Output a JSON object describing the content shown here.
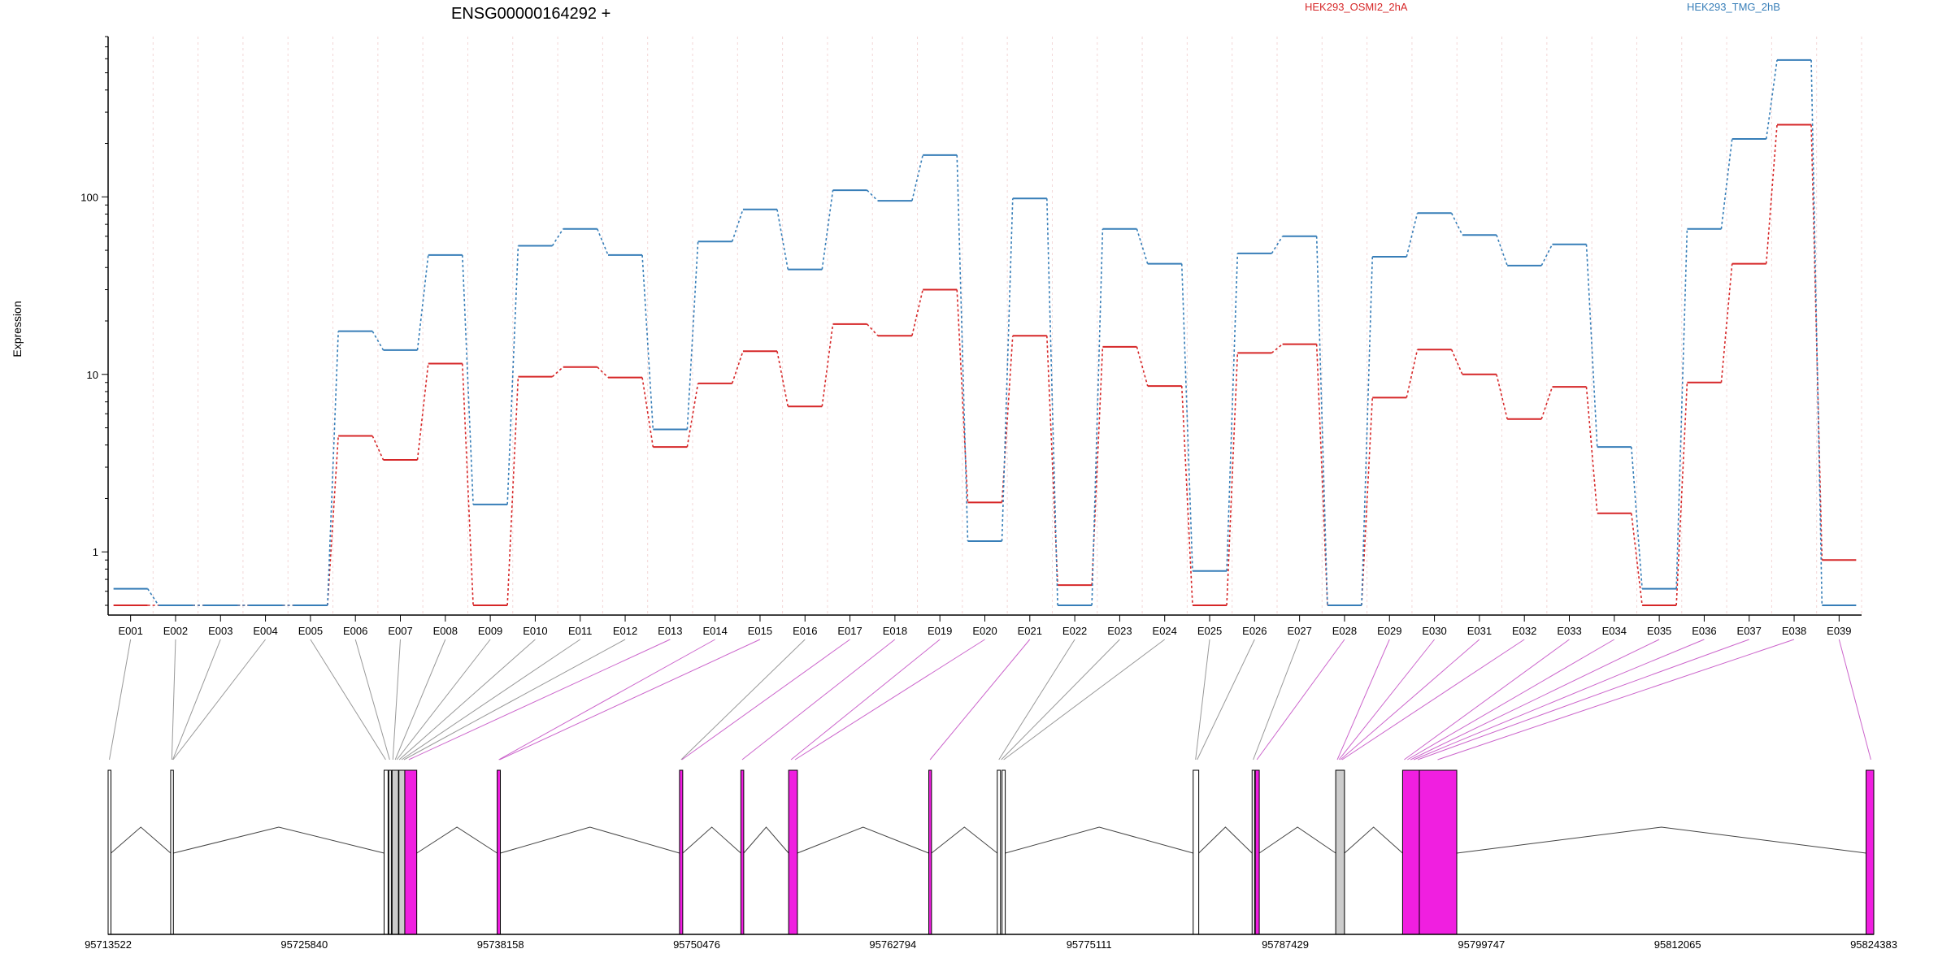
{
  "chart_data": {
    "type": "line",
    "title": "ENSG00000164292 +",
    "ylabel": "Expression",
    "y_scale": "log",
    "yticks": [
      1,
      10,
      100
    ],
    "ylim": [
      0.5,
      800
    ],
    "legend_placement": "top-right",
    "categories": [
      "E001",
      "E002",
      "E003",
      "E004",
      "E005",
      "E006",
      "E007",
      "E008",
      "E009",
      "E010",
      "E011",
      "E012",
      "E013",
      "E014",
      "E015",
      "E016",
      "E017",
      "E018",
      "E019",
      "E020",
      "E021",
      "E022",
      "E023",
      "E024",
      "E025",
      "E026",
      "E027",
      "E028",
      "E029",
      "E030",
      "E031",
      "E032",
      "E033",
      "E034",
      "E035",
      "E036",
      "E037",
      "E038",
      "E039"
    ],
    "series": [
      {
        "name": "HEK293_OSMI2_2hA",
        "color": "#d62728",
        "values": [
          0.5,
          0.5,
          0.5,
          0.5,
          0.5,
          4.5,
          3.3,
          11.5,
          0.5,
          9.7,
          11.0,
          9.6,
          3.9,
          8.9,
          13.5,
          6.6,
          19.2,
          16.5,
          30.0,
          1.9,
          16.5,
          0.65,
          14.3,
          8.6,
          0.5,
          13.2,
          14.8,
          0.5,
          7.4,
          13.8,
          10.0,
          5.6,
          8.5,
          1.65,
          0.5,
          9.0,
          42.0,
          255.0,
          0.9
        ]
      },
      {
        "name": "HEK293_TMG_2hB",
        "color": "#377eb8",
        "values": [
          0.62,
          0.5,
          0.5,
          0.5,
          0.5,
          17.5,
          13.7,
          47.0,
          1.85,
          53.0,
          66.0,
          47.0,
          4.9,
          56.0,
          85.0,
          39.0,
          109.0,
          95.0,
          172.0,
          1.15,
          98.0,
          0.5,
          66.0,
          42.0,
          0.78,
          48.0,
          60.0,
          0.5,
          46.0,
          81.0,
          61.0,
          41.0,
          54.0,
          3.9,
          0.62,
          66.0,
          212.0,
          590.0,
          0.5
        ]
      }
    ],
    "exon_track": {
      "coordinate_labels": [
        "95713522",
        "95725840",
        "95738158",
        "95750476",
        "95762794",
        "95775111",
        "95787429",
        "95799747",
        "95812065",
        "95824383"
      ],
      "exons": [
        {
          "start": 95713522,
          "end": 95713700,
          "color": "#ffffff"
        },
        {
          "start": 95717450,
          "end": 95717620,
          "color": "#ffffff"
        },
        {
          "start": 95730850,
          "end": 95731100,
          "color": "#ffffff"
        },
        {
          "start": 95731150,
          "end": 95731300,
          "color": "#ffffff"
        },
        {
          "start": 95731350,
          "end": 95731750,
          "color": "#cccccc"
        },
        {
          "start": 95731780,
          "end": 95732150,
          "color": "#cccccc"
        },
        {
          "start": 95732150,
          "end": 95732900,
          "color": "#f01fe0"
        },
        {
          "start": 95737950,
          "end": 95738150,
          "color": "#f01fe0"
        },
        {
          "start": 95749400,
          "end": 95749600,
          "color": "#f01fe0"
        },
        {
          "start": 95753250,
          "end": 95753430,
          "color": "#f01fe0"
        },
        {
          "start": 95756250,
          "end": 95756800,
          "color": "#f01fe0"
        },
        {
          "start": 95765050,
          "end": 95765220,
          "color": "#f01fe0"
        },
        {
          "start": 95769350,
          "end": 95769550,
          "color": "#ffffff"
        },
        {
          "start": 95769650,
          "end": 95769850,
          "color": "#ffffff"
        },
        {
          "start": 95781650,
          "end": 95782000,
          "color": "#ffffff"
        },
        {
          "start": 95785350,
          "end": 95785500,
          "color": "#ffffff"
        },
        {
          "start": 95785550,
          "end": 95785800,
          "color": "#f01fe0"
        },
        {
          "start": 95790600,
          "end": 95791150,
          "color": "#cccccc"
        },
        {
          "start": 95794800,
          "end": 95795850,
          "color": "#f01fe0"
        },
        {
          "start": 95795850,
          "end": 95798200,
          "color": "#f01fe0"
        },
        {
          "start": 95823900,
          "end": 95824383,
          "color": "#f01fe0"
        }
      ],
      "exon_links": [
        {
          "exon": "E001",
          "pos": 95713600,
          "color": "#999999"
        },
        {
          "exon": "E002",
          "pos": 95717520,
          "color": "#999999"
        },
        {
          "exon": "E003",
          "pos": 95717580,
          "color": "#999999"
        },
        {
          "exon": "E004",
          "pos": 95717600,
          "color": "#999999"
        },
        {
          "exon": "E005",
          "pos": 95730950,
          "color": "#999999"
        },
        {
          "exon": "E006",
          "pos": 95731200,
          "color": "#999999"
        },
        {
          "exon": "E007",
          "pos": 95731400,
          "color": "#999999"
        },
        {
          "exon": "E008",
          "pos": 95731550,
          "color": "#999999"
        },
        {
          "exon": "E009",
          "pos": 95731650,
          "color": "#999999"
        },
        {
          "exon": "E010",
          "pos": 95731800,
          "color": "#999999"
        },
        {
          "exon": "E011",
          "pos": 95731950,
          "color": "#999999"
        },
        {
          "exon": "E012",
          "pos": 95732100,
          "color": "#999999"
        },
        {
          "exon": "E013",
          "pos": 95732400,
          "color": "#cc66cc"
        },
        {
          "exon": "E014",
          "pos": 95738050,
          "color": "#cc66cc"
        },
        {
          "exon": "E015",
          "pos": 95738100,
          "color": "#cc66cc"
        },
        {
          "exon": "E016",
          "pos": 95749500,
          "color": "#999999"
        },
        {
          "exon": "E017",
          "pos": 95749550,
          "color": "#cc66cc"
        },
        {
          "exon": "E018",
          "pos": 95753330,
          "color": "#cc66cc"
        },
        {
          "exon": "E019",
          "pos": 95756400,
          "color": "#cc66cc"
        },
        {
          "exon": "E020",
          "pos": 95756650,
          "color": "#cc66cc"
        },
        {
          "exon": "E021",
          "pos": 95765130,
          "color": "#cc66cc"
        },
        {
          "exon": "E022",
          "pos": 95769450,
          "color": "#999999"
        },
        {
          "exon": "E023",
          "pos": 95769600,
          "color": "#999999"
        },
        {
          "exon": "E024",
          "pos": 95769750,
          "color": "#999999"
        },
        {
          "exon": "E025",
          "pos": 95781800,
          "color": "#999999"
        },
        {
          "exon": "E026",
          "pos": 95781900,
          "color": "#999999"
        },
        {
          "exon": "E027",
          "pos": 95785420,
          "color": "#999999"
        },
        {
          "exon": "E028",
          "pos": 95785650,
          "color": "#cc66cc"
        },
        {
          "exon": "E029",
          "pos": 95790700,
          "color": "#cc66cc"
        },
        {
          "exon": "E030",
          "pos": 95790800,
          "color": "#cc66cc"
        },
        {
          "exon": "E031",
          "pos": 95790900,
          "color": "#cc66cc"
        },
        {
          "exon": "E032",
          "pos": 95791000,
          "color": "#cc66cc"
        },
        {
          "exon": "E033",
          "pos": 95794900,
          "color": "#cc66cc"
        },
        {
          "exon": "E034",
          "pos": 95795100,
          "color": "#cc66cc"
        },
        {
          "exon": "E035",
          "pos": 95795300,
          "color": "#cc66cc"
        },
        {
          "exon": "E036",
          "pos": 95795500,
          "color": "#cc66cc"
        },
        {
          "exon": "E037",
          "pos": 95795750,
          "color": "#cc66cc"
        },
        {
          "exon": "E038",
          "pos": 95797000,
          "color": "#cc66cc"
        },
        {
          "exon": "E039",
          "pos": 95824200,
          "color": "#cc66cc"
        }
      ]
    }
  }
}
